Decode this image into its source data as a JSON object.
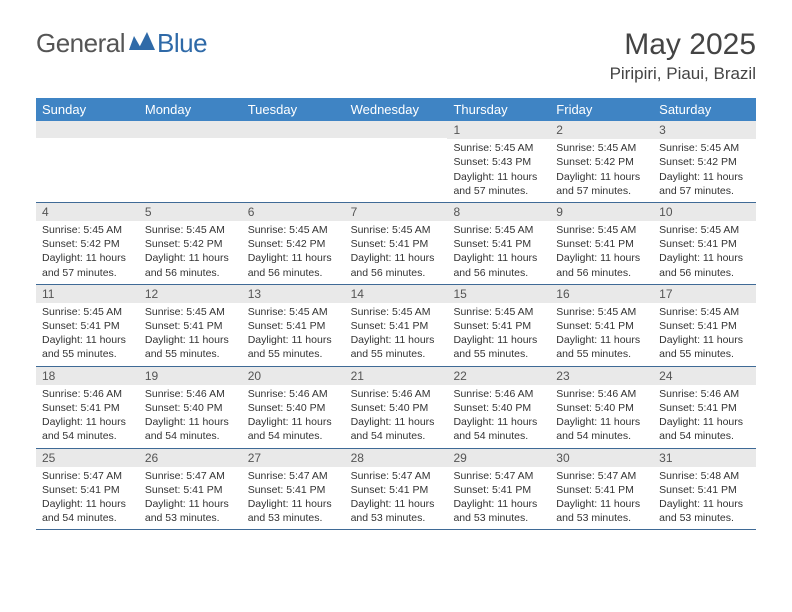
{
  "brand": {
    "part1": "General",
    "part2": "Blue"
  },
  "title": "May 2025",
  "location": "Piripiri, Piaui, Brazil",
  "colors": {
    "header_bg": "#3f84c4",
    "header_text": "#ffffff",
    "daynum_bg": "#e9e9e9",
    "week_border": "#3f6a96",
    "body_text": "#333333",
    "logo_gray": "#555555",
    "logo_blue": "#2f6aa8"
  },
  "day_names": [
    "Sunday",
    "Monday",
    "Tuesday",
    "Wednesday",
    "Thursday",
    "Friday",
    "Saturday"
  ],
  "label": {
    "sunrise": "Sunrise: ",
    "sunset": "Sunset: ",
    "daylight": "Daylight: "
  },
  "weeks": [
    [
      {
        "n": "",
        "sr": "",
        "ss": "",
        "dl": ""
      },
      {
        "n": "",
        "sr": "",
        "ss": "",
        "dl": ""
      },
      {
        "n": "",
        "sr": "",
        "ss": "",
        "dl": ""
      },
      {
        "n": "",
        "sr": "",
        "ss": "",
        "dl": ""
      },
      {
        "n": "1",
        "sr": "5:45 AM",
        "ss": "5:43 PM",
        "dl": "11 hours and 57 minutes."
      },
      {
        "n": "2",
        "sr": "5:45 AM",
        "ss": "5:42 PM",
        "dl": "11 hours and 57 minutes."
      },
      {
        "n": "3",
        "sr": "5:45 AM",
        "ss": "5:42 PM",
        "dl": "11 hours and 57 minutes."
      }
    ],
    [
      {
        "n": "4",
        "sr": "5:45 AM",
        "ss": "5:42 PM",
        "dl": "11 hours and 57 minutes."
      },
      {
        "n": "5",
        "sr": "5:45 AM",
        "ss": "5:42 PM",
        "dl": "11 hours and 56 minutes."
      },
      {
        "n": "6",
        "sr": "5:45 AM",
        "ss": "5:42 PM",
        "dl": "11 hours and 56 minutes."
      },
      {
        "n": "7",
        "sr": "5:45 AM",
        "ss": "5:41 PM",
        "dl": "11 hours and 56 minutes."
      },
      {
        "n": "8",
        "sr": "5:45 AM",
        "ss": "5:41 PM",
        "dl": "11 hours and 56 minutes."
      },
      {
        "n": "9",
        "sr": "5:45 AM",
        "ss": "5:41 PM",
        "dl": "11 hours and 56 minutes."
      },
      {
        "n": "10",
        "sr": "5:45 AM",
        "ss": "5:41 PM",
        "dl": "11 hours and 56 minutes."
      }
    ],
    [
      {
        "n": "11",
        "sr": "5:45 AM",
        "ss": "5:41 PM",
        "dl": "11 hours and 55 minutes."
      },
      {
        "n": "12",
        "sr": "5:45 AM",
        "ss": "5:41 PM",
        "dl": "11 hours and 55 minutes."
      },
      {
        "n": "13",
        "sr": "5:45 AM",
        "ss": "5:41 PM",
        "dl": "11 hours and 55 minutes."
      },
      {
        "n": "14",
        "sr": "5:45 AM",
        "ss": "5:41 PM",
        "dl": "11 hours and 55 minutes."
      },
      {
        "n": "15",
        "sr": "5:45 AM",
        "ss": "5:41 PM",
        "dl": "11 hours and 55 minutes."
      },
      {
        "n": "16",
        "sr": "5:45 AM",
        "ss": "5:41 PM",
        "dl": "11 hours and 55 minutes."
      },
      {
        "n": "17",
        "sr": "5:45 AM",
        "ss": "5:41 PM",
        "dl": "11 hours and 55 minutes."
      }
    ],
    [
      {
        "n": "18",
        "sr": "5:46 AM",
        "ss": "5:41 PM",
        "dl": "11 hours and 54 minutes."
      },
      {
        "n": "19",
        "sr": "5:46 AM",
        "ss": "5:40 PM",
        "dl": "11 hours and 54 minutes."
      },
      {
        "n": "20",
        "sr": "5:46 AM",
        "ss": "5:40 PM",
        "dl": "11 hours and 54 minutes."
      },
      {
        "n": "21",
        "sr": "5:46 AM",
        "ss": "5:40 PM",
        "dl": "11 hours and 54 minutes."
      },
      {
        "n": "22",
        "sr": "5:46 AM",
        "ss": "5:40 PM",
        "dl": "11 hours and 54 minutes."
      },
      {
        "n": "23",
        "sr": "5:46 AM",
        "ss": "5:40 PM",
        "dl": "11 hours and 54 minutes."
      },
      {
        "n": "24",
        "sr": "5:46 AM",
        "ss": "5:41 PM",
        "dl": "11 hours and 54 minutes."
      }
    ],
    [
      {
        "n": "25",
        "sr": "5:47 AM",
        "ss": "5:41 PM",
        "dl": "11 hours and 54 minutes."
      },
      {
        "n": "26",
        "sr": "5:47 AM",
        "ss": "5:41 PM",
        "dl": "11 hours and 53 minutes."
      },
      {
        "n": "27",
        "sr": "5:47 AM",
        "ss": "5:41 PM",
        "dl": "11 hours and 53 minutes."
      },
      {
        "n": "28",
        "sr": "5:47 AM",
        "ss": "5:41 PM",
        "dl": "11 hours and 53 minutes."
      },
      {
        "n": "29",
        "sr": "5:47 AM",
        "ss": "5:41 PM",
        "dl": "11 hours and 53 minutes."
      },
      {
        "n": "30",
        "sr": "5:47 AM",
        "ss": "5:41 PM",
        "dl": "11 hours and 53 minutes."
      },
      {
        "n": "31",
        "sr": "5:48 AM",
        "ss": "5:41 PM",
        "dl": "11 hours and 53 minutes."
      }
    ]
  ]
}
